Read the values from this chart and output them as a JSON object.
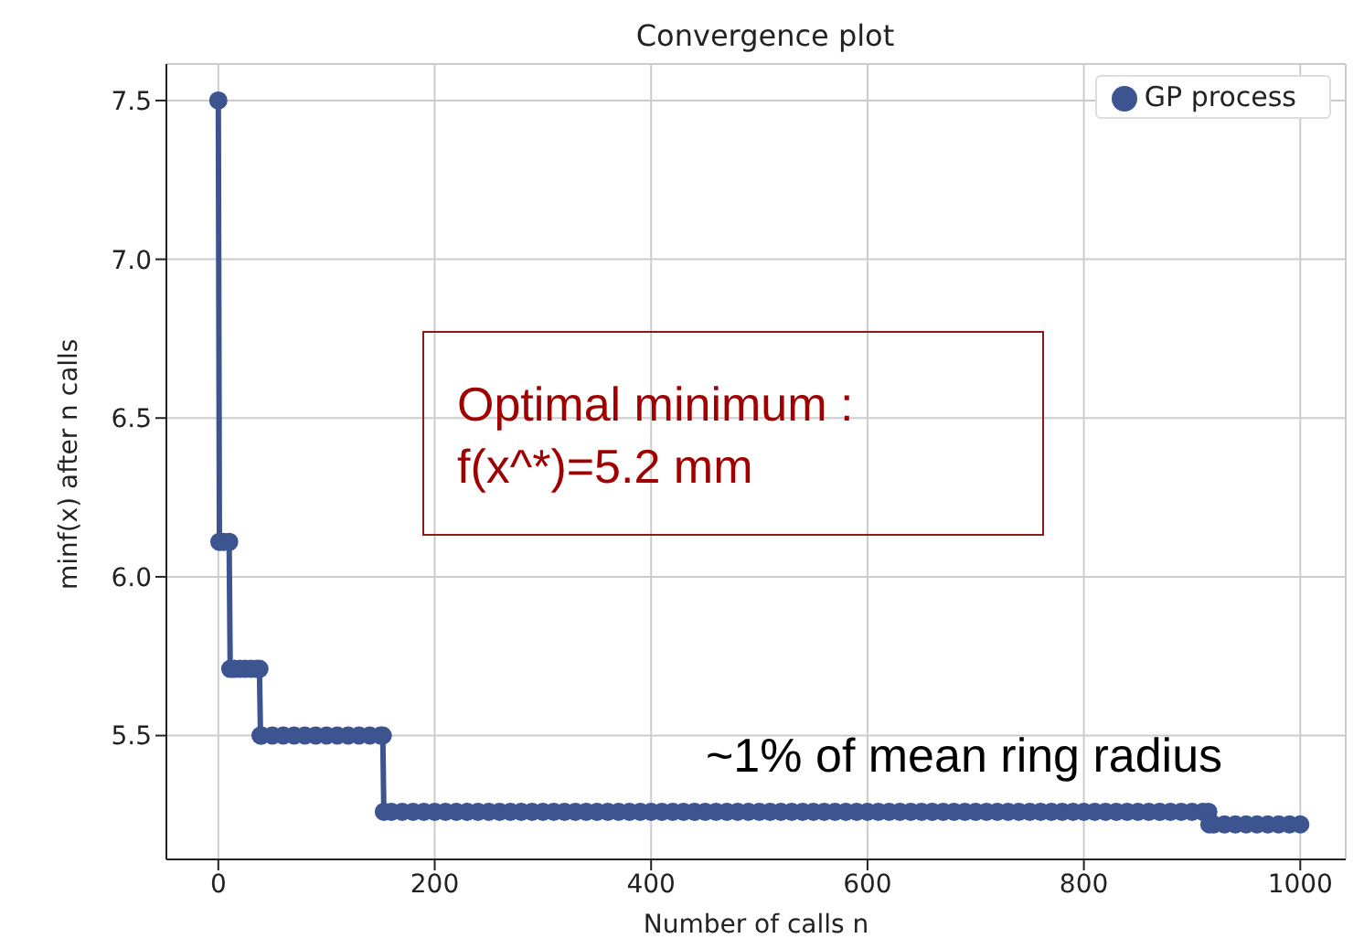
{
  "chart_data": {
    "type": "line",
    "title": "Convergence plot",
    "xlabel": "Number of calls n",
    "ylabel": "minf(x) after n calls",
    "annotations": [
      "Optimal minimum :\nf(x^*)=5.2 mm",
      "~1% of mean ring radius"
    ],
    "x": [
      0,
      1,
      5,
      10,
      11,
      15,
      20,
      25,
      30,
      35,
      38,
      39,
      40,
      50,
      60,
      70,
      80,
      90,
      100,
      110,
      120,
      130,
      140,
      150,
      152,
      153,
      160,
      170,
      180,
      190,
      200,
      210,
      220,
      230,
      240,
      250,
      260,
      270,
      280,
      290,
      300,
      310,
      320,
      330,
      340,
      350,
      360,
      370,
      380,
      390,
      400,
      410,
      420,
      430,
      440,
      450,
      460,
      470,
      480,
      490,
      500,
      510,
      520,
      530,
      540,
      550,
      560,
      570,
      580,
      590,
      600,
      610,
      620,
      630,
      640,
      650,
      660,
      670,
      680,
      690,
      700,
      710,
      720,
      730,
      740,
      750,
      760,
      770,
      780,
      790,
      800,
      810,
      820,
      830,
      840,
      850,
      860,
      870,
      880,
      890,
      900,
      910,
      915,
      916,
      920,
      930,
      940,
      950,
      960,
      970,
      980,
      990,
      1000
    ],
    "series": [
      {
        "name": "GP process",
        "color": "#3c5490",
        "values": [
          7.5,
          6.11,
          6.11,
          6.11,
          5.71,
          5.71,
          5.71,
          5.71,
          5.71,
          5.71,
          5.71,
          5.5,
          5.5,
          5.5,
          5.5,
          5.5,
          5.5,
          5.5,
          5.5,
          5.5,
          5.5,
          5.5,
          5.5,
          5.5,
          5.5,
          5.26,
          5.26,
          5.26,
          5.26,
          5.26,
          5.26,
          5.26,
          5.26,
          5.26,
          5.26,
          5.26,
          5.26,
          5.26,
          5.26,
          5.26,
          5.26,
          5.26,
          5.26,
          5.26,
          5.26,
          5.26,
          5.26,
          5.26,
          5.26,
          5.26,
          5.26,
          5.26,
          5.26,
          5.26,
          5.26,
          5.26,
          5.26,
          5.26,
          5.26,
          5.26,
          5.26,
          5.26,
          5.26,
          5.26,
          5.26,
          5.26,
          5.26,
          5.26,
          5.26,
          5.26,
          5.26,
          5.26,
          5.26,
          5.26,
          5.26,
          5.26,
          5.26,
          5.26,
          5.26,
          5.26,
          5.26,
          5.26,
          5.26,
          5.26,
          5.26,
          5.26,
          5.26,
          5.26,
          5.26,
          5.26,
          5.26,
          5.26,
          5.26,
          5.26,
          5.26,
          5.26,
          5.26,
          5.26,
          5.26,
          5.26,
          5.26,
          5.26,
          5.26,
          5.22,
          5.22,
          5.22,
          5.22,
          5.22,
          5.22,
          5.22,
          5.22,
          5.22,
          5.22
        ]
      }
    ],
    "xlim": [
      -48,
      1042
    ],
    "xticks": [
      0,
      200,
      400,
      600,
      800,
      1000
    ],
    "ylim": [
      5.11,
      7.615
    ],
    "yticks": [
      5.5,
      {
        "value": 6,
        "label": "6.0"
      },
      6.5,
      {
        "value": 7,
        "label": "7.0"
      },
      7.5
    ],
    "grid": true,
    "legend": "top right",
    "marker": "circle",
    "line_style": "solid"
  }
}
